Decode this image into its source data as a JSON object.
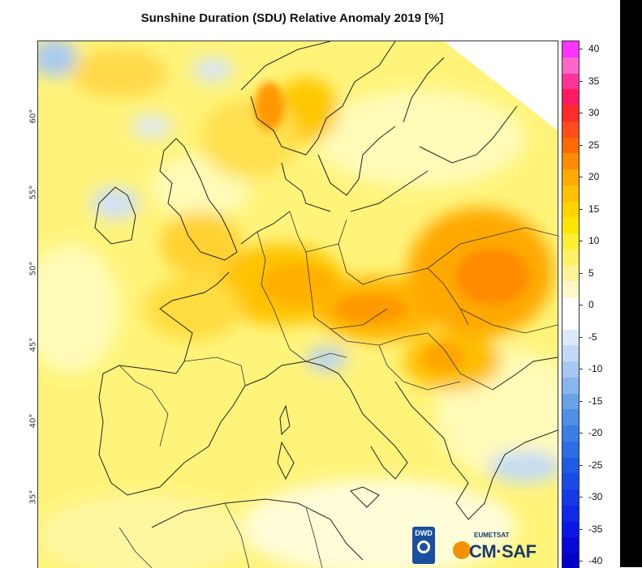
{
  "title": "Sunshine Duration (SDU) Relative Anomaly 2019 [%]",
  "latitude_labels": [
    {
      "value": "60°"
    },
    {
      "value": "55°"
    },
    {
      "value": "50°"
    },
    {
      "value": "45°"
    },
    {
      "value": "40°"
    },
    {
      "value": "35°"
    }
  ],
  "colorbar": {
    "ticks": [
      "40",
      "35",
      "30",
      "25",
      "20",
      "15",
      "10",
      "5",
      "0",
      "-5",
      "-10",
      "-15",
      "-20",
      "-25",
      "-30",
      "-35",
      "-40"
    ],
    "colors": [
      "#ff33ff",
      "#ff66cc",
      "#ff3399",
      "#ff1a5e",
      "#ff2a2a",
      "#ff4d1a",
      "#ff6a00",
      "#ff8c00",
      "#ffaa00",
      "#ffc000",
      "#ffd400",
      "#ffe600",
      "#ffee33",
      "#fff066",
      "#fff399",
      "#fff8c8",
      "#ffffff",
      "#ffffff",
      "#dde9f8",
      "#c2d9f5",
      "#a6c8f0",
      "#88b5ec",
      "#6aa2e8",
      "#4f8fe6",
      "#3d7ee6",
      "#2b6de6",
      "#1f5ce6",
      "#1a4be6",
      "#153ae6",
      "#1029e6",
      "#0b18e6",
      "#0808d8",
      "#0500c8",
      "#0400b8"
    ]
  },
  "logos": {
    "dwd": "DWD",
    "eumetsat": "EUMETSAT",
    "cmsaf": "CM·SAF"
  }
}
